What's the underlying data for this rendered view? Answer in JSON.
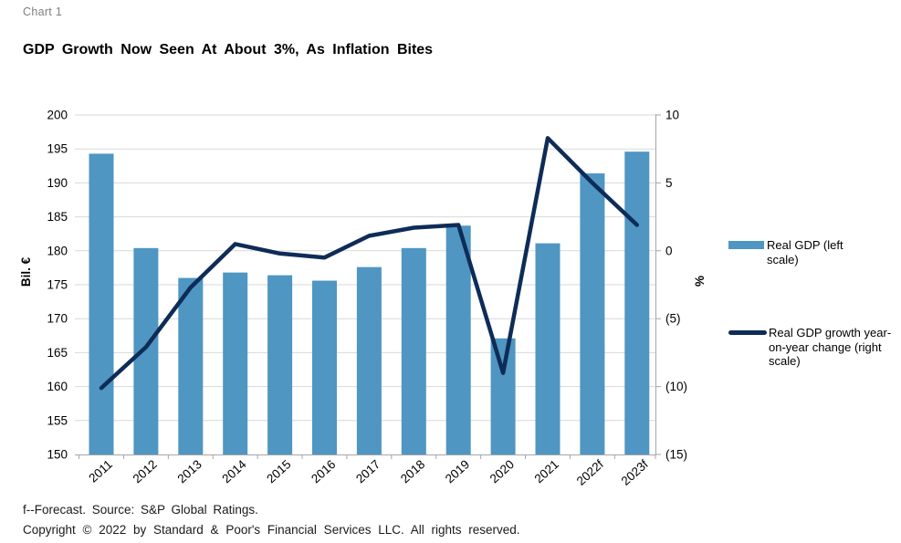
{
  "header": {
    "chart_label": "Chart 1",
    "title": "GDP Growth Now Seen At About 3%, As Inflation Bites"
  },
  "chart_data": {
    "type": "combo-bar-line",
    "categories": [
      "2011",
      "2012",
      "2013",
      "2014",
      "2015",
      "2016",
      "2017",
      "2018",
      "2019",
      "2020",
      "2021",
      "2022f",
      "2023f"
    ],
    "series": [
      {
        "name": "Real GDP (left scale)",
        "type": "bar",
        "axis": "left",
        "color": "#4f96c2",
        "values": [
          194.3,
          180.4,
          176.0,
          176.8,
          176.4,
          175.6,
          177.6,
          180.4,
          183.7,
          167.1,
          181.1,
          191.4,
          194.6
        ]
      },
      {
        "name": "Real GDP growth year-on-year change (right scale)",
        "type": "line",
        "axis": "right",
        "color": "#0e2c57",
        "values": [
          -10.1,
          -7.1,
          -2.7,
          0.5,
          -0.2,
          -0.5,
          1.1,
          1.7,
          1.9,
          -9.0,
          8.3,
          5.0,
          1.9
        ]
      }
    ],
    "left_axis": {
      "title": "Bil. €",
      "min": 150,
      "max": 200,
      "ticks": [
        {
          "v": 200,
          "label": "200"
        },
        {
          "v": 195,
          "label": "195"
        },
        {
          "v": 190,
          "label": "190"
        },
        {
          "v": 185,
          "label": "185"
        },
        {
          "v": 180,
          "label": "180"
        },
        {
          "v": 175,
          "label": "175"
        },
        {
          "v": 170,
          "label": "170"
        },
        {
          "v": 165,
          "label": "165"
        },
        {
          "v": 160,
          "label": "160"
        },
        {
          "v": 155,
          "label": "155"
        },
        {
          "v": 150,
          "label": "150"
        }
      ]
    },
    "right_axis": {
      "title": "%",
      "min": -15,
      "max": 10,
      "ticks": [
        {
          "v": 10,
          "label": "10"
        },
        {
          "v": 5,
          "label": "5"
        },
        {
          "v": 0,
          "label": "0"
        },
        {
          "v": -5,
          "label": "(5)"
        },
        {
          "v": -10,
          "label": "(10)"
        },
        {
          "v": -15,
          "label": "(15)"
        }
      ]
    },
    "grid": true,
    "legend_position": "right"
  },
  "legend": {
    "items": [
      {
        "swatch": "bar",
        "label": "Real GDP (left scale)"
      },
      {
        "swatch": "line",
        "label": "Real GDP growth year-on-year change (right scale)"
      }
    ]
  },
  "footer": {
    "source": "f--Forecast. Source: S&P Global Ratings.",
    "copyright": "Copyright © 2022 by Standard & Poor's Financial Services LLC. All rights reserved."
  },
  "colors": {
    "bar": "#4f96c2",
    "line": "#0e2c57",
    "grid": "#d9d9d9",
    "axis": "#a6a6a6",
    "chart_label_gray": "#808080"
  }
}
